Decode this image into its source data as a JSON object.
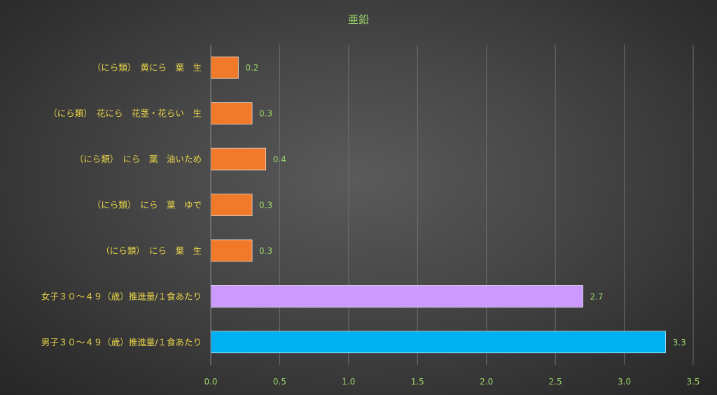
{
  "chart_data": {
    "type": "bar",
    "orientation": "horizontal",
    "title": "亜鉛",
    "categories": [
      "（にら類）　黄にら　葉　生",
      "（にら類）　花にら　花茎・花らい　生",
      "（にら類）　にら　葉　油いため",
      "（にら類）　にら　葉　ゆで",
      "（にら類）　にら　葉　生",
      "女子３０～４９（歳）推進量/１食あたり",
      "男子３０～４９（歳）推進量/１食あたり"
    ],
    "values": [
      0.2,
      0.3,
      0.4,
      0.3,
      0.3,
      2.7,
      3.3
    ],
    "data_labels": [
      "0.2",
      "0.3",
      "0.4",
      "0.3",
      "0.3",
      "2.7",
      "3.3"
    ],
    "bar_colors": [
      "#f07a2a",
      "#f07a2a",
      "#f07a2a",
      "#f07a2a",
      "#f07a2a",
      "#cc99ff",
      "#00b0f0"
    ],
    "xlim": [
      0,
      3.5
    ],
    "xticks": [
      0.0,
      0.5,
      1.0,
      1.5,
      2.0,
      2.5,
      3.0,
      3.5
    ],
    "xtick_labels": [
      "0.0",
      "0.5",
      "1.0",
      "1.5",
      "2.0",
      "2.5",
      "3.0",
      "3.5"
    ],
    "grid": true,
    "xlabel": "",
    "ylabel": ""
  }
}
